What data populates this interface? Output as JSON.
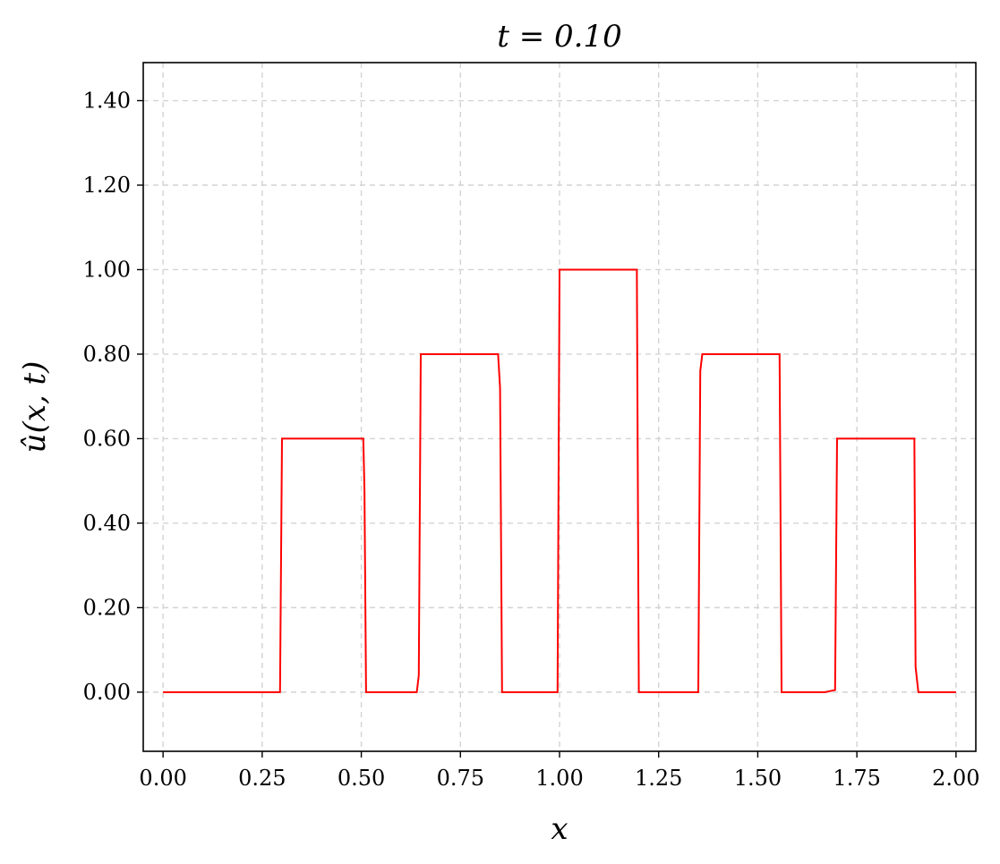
{
  "chart_data": {
    "type": "line",
    "title": "t = 0.10",
    "xlabel": "x",
    "ylabel": "û(x, t)",
    "xlim": [
      -0.05,
      2.05
    ],
    "ylim": [
      -0.14,
      1.49
    ],
    "xticks": [
      0.0,
      0.25,
      0.5,
      0.75,
      1.0,
      1.25,
      1.5,
      1.75,
      2.0
    ],
    "xtick_labels": [
      "0.00",
      "0.25",
      "0.50",
      "0.75",
      "1.00",
      "1.25",
      "1.50",
      "1.75",
      "2.00"
    ],
    "yticks": [
      0.0,
      0.2,
      0.4,
      0.6,
      0.8,
      1.0,
      1.2,
      1.4
    ],
    "ytick_labels": [
      "0.00",
      "0.20",
      "0.40",
      "0.60",
      "0.80",
      "1.00",
      "1.20",
      "1.40"
    ],
    "grid": true,
    "grid_style": "dashed",
    "series": [
      {
        "color": "#ff0000",
        "x": [
          0.0,
          0.295,
          0.3,
          0.505,
          0.508,
          0.512,
          0.64,
          0.645,
          0.65,
          0.845,
          0.85,
          0.855,
          0.995,
          1.0,
          1.195,
          1.2,
          1.35,
          1.355,
          1.36,
          1.555,
          1.56,
          1.67,
          1.695,
          1.7,
          1.895,
          1.898,
          1.905,
          2.0
        ],
        "y": [
          0.0,
          0.0,
          0.6,
          0.6,
          0.48,
          0.0,
          0.0,
          0.04,
          0.8,
          0.8,
          0.72,
          0.0,
          0.0,
          1.0,
          1.0,
          0.0,
          0.0,
          0.76,
          0.8,
          0.8,
          0.0,
          0.0,
          0.005,
          0.6,
          0.6,
          0.06,
          0.0,
          0.0
        ]
      }
    ]
  }
}
